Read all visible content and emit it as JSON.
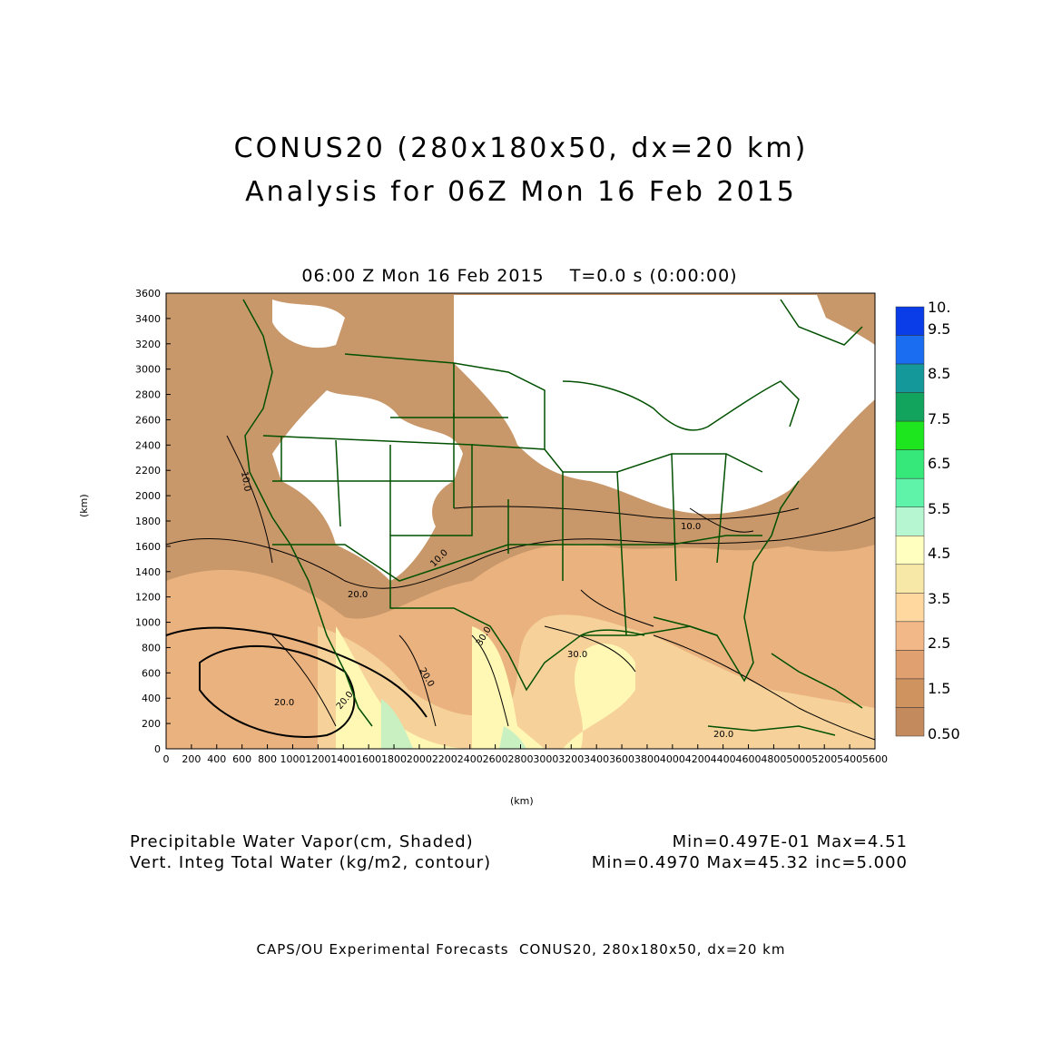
{
  "title": {
    "line1": "CONUS20 (280x180x50, dx=20 km)",
    "line2": "Analysis for 06Z Mon 16 Feb 2015"
  },
  "subtitle": "06:00 Z Mon 16 Feb 2015    T=0.0 s (0:00:00)",
  "axes": {
    "xlabel": "(km)",
    "ylabel": "(km)",
    "xticks": [
      "0",
      "200",
      "400",
      "600",
      "800",
      "1000",
      "1200",
      "1400",
      "1600",
      "1800",
      "2000",
      "2200",
      "2400",
      "2600",
      "2800",
      "3000",
      "3200",
      "3400",
      "3600",
      "3800",
      "4000",
      "4200",
      "4400",
      "4600",
      "4800",
      "5000",
      "5200",
      "5400",
      "5600"
    ],
    "yticks": [
      "0",
      "200",
      "400",
      "600",
      "800",
      "1000",
      "1200",
      "1400",
      "1600",
      "1800",
      "2000",
      "2200",
      "2400",
      "2600",
      "2800",
      "3000",
      "3200",
      "3400",
      "3600"
    ],
    "xrange": [
      0,
      5600
    ],
    "yrange": [
      0,
      3600
    ]
  },
  "colorbar": {
    "levels": [
      "10.",
      "9.5",
      "8.5",
      "7.5",
      "6.5",
      "5.5",
      "4.5",
      "3.5",
      "2.5",
      "1.5",
      "0.50"
    ],
    "colors": [
      "#0a3de8",
      "#1a6cf0",
      "#15989a",
      "#12a45c",
      "#1ee61e",
      "#36e87a",
      "#5ef3a8",
      "#b6f6d0",
      "#ffffc0",
      "#f7e8a8",
      "#ffd8a0",
      "#f2b888",
      "#e0a070",
      "#cf9360",
      "#c38a5e"
    ]
  },
  "contour_labels": [
    "10.0",
    "10.0",
    "10.0",
    "20.0",
    "20.0",
    "20.0",
    "20.0",
    "30.0",
    "30.0",
    "20.0"
  ],
  "field_colors": {
    "dry": "#c8976a",
    "mid": "#e9b27e",
    "moist": "#f6d29a",
    "wet": "#fff8b4",
    "very_wet": "#c8f0c0",
    "boundary": "#005000"
  },
  "footer": {
    "left_1": "Precipitable Water Vapor(cm, Shaded)",
    "left_2": "Vert. Integ Total Water (kg/m2, contour)",
    "right_1": "Min=0.497E-01 Max=4.51",
    "right_2": "Min=0.4970 Max=45.32 inc=5.000"
  },
  "credit": "CAPS/OU Experimental Forecasts  CONUS20, 280x180x50, dx=20 km"
}
